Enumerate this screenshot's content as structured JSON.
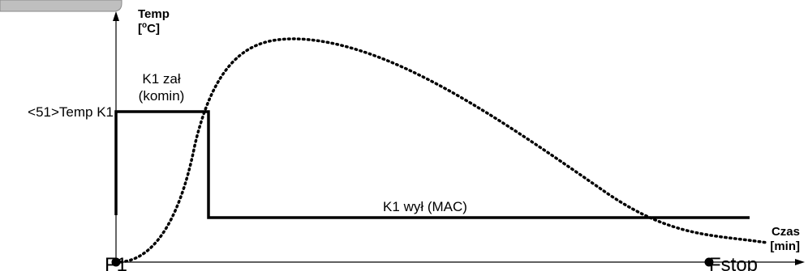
{
  "diagram": {
    "y_axis": {
      "title_line1": "Temp",
      "title_line2_pre": "[",
      "title_line2_sup": "o",
      "title_line2_post": "C]"
    },
    "x_axis": {
      "title_line1": "Czas",
      "title_line2": "[min]"
    },
    "threshold_label": "<51>Temp K1",
    "k1_on_line1": "K1 zał",
    "k1_on_line2": "(komin)",
    "k1_off_label": "K1 wył (MAC)",
    "start_point_label": "F1",
    "stop_point_label": "Fstop",
    "colors": {
      "ink": "#000000",
      "corner_tab": "#bfbfbf"
    }
  }
}
